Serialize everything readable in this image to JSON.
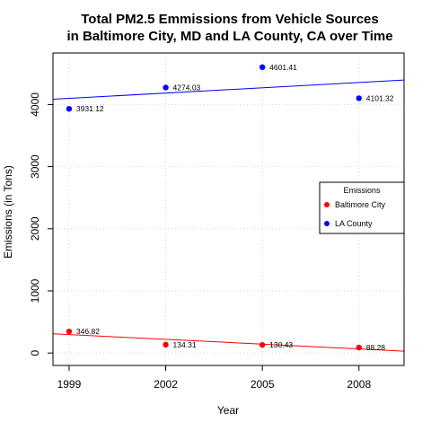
{
  "chart_data": {
    "type": "scatter",
    "title_lines": [
      "Total PM2.5 Emmissions from Vehicle Sources",
      "in Baltimore City, MD and LA County, CA over Time"
    ],
    "xlabel": "Year",
    "ylabel": "Emissions (in Tons)",
    "x_ticks": [
      1999,
      2002,
      2005,
      2008
    ],
    "y_ticks": [
      0,
      1000,
      2000,
      3000,
      4000
    ],
    "xlim": [
      1998.5,
      2009.4
    ],
    "ylim": [
      -200,
      4830
    ],
    "grid": true,
    "legend": {
      "title": "Emissions",
      "position": "right"
    },
    "series": [
      {
        "name": "Baltimore City",
        "color": "#ff0000",
        "points": [
          {
            "x": 1999,
            "y": 346.82,
            "label": "346.82"
          },
          {
            "x": 2002,
            "y": 134.31,
            "label": "134.31"
          },
          {
            "x": 2005,
            "y": 130.43,
            "label": "130.43"
          },
          {
            "x": 2008,
            "y": 88.28,
            "label": "88.28"
          }
        ],
        "trend": {
          "x": [
            1998.5,
            2009.4
          ],
          "y": [
            310,
            30
          ]
        }
      },
      {
        "name": "LA County",
        "color": "#0000ff",
        "points": [
          {
            "x": 1999,
            "y": 3931.12,
            "label": "3931.12"
          },
          {
            "x": 2002,
            "y": 4274.03,
            "label": "4274.03"
          },
          {
            "x": 2005,
            "y": 4601.41,
            "label": "4601.41"
          },
          {
            "x": 2008,
            "y": 4101.32,
            "label": "4101.32"
          }
        ],
        "trend": {
          "x": [
            1998.5,
            2009.4
          ],
          "y": [
            4085,
            4395
          ]
        }
      }
    ]
  }
}
